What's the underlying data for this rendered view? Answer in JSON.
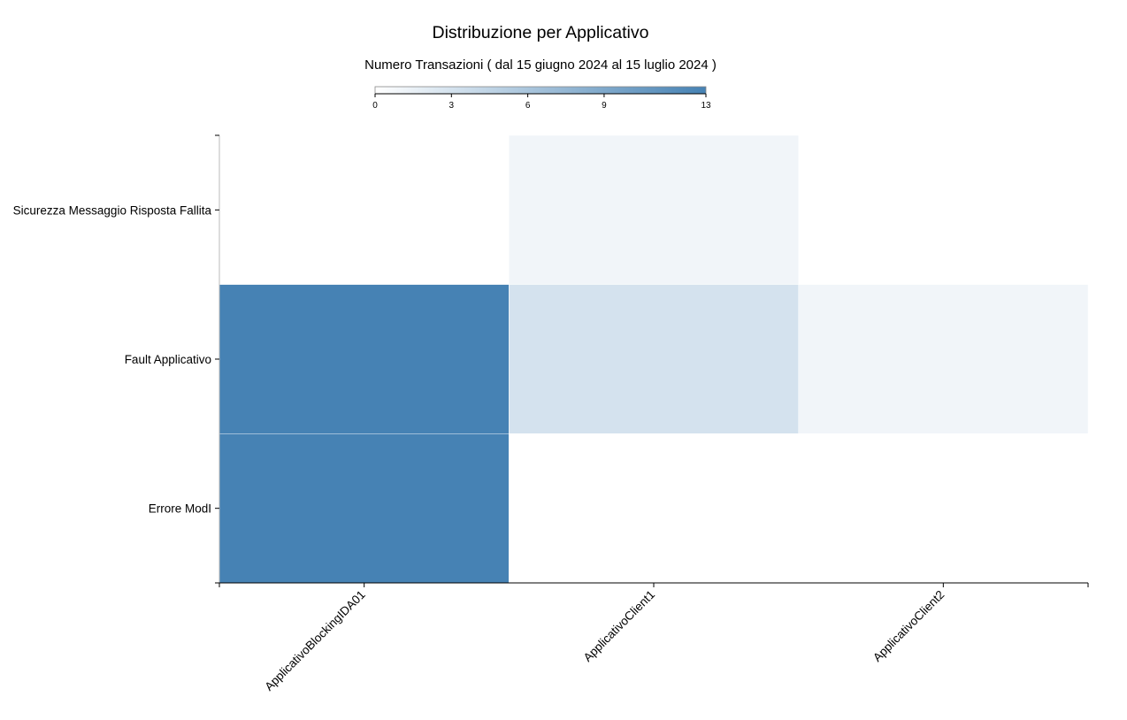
{
  "chart_data": {
    "type": "heatmap",
    "title": "Distribuzione per Applicativo",
    "subtitle": "Numero Transazioni ( dal 15 giugno 2024 al 15 luglio 2024 )",
    "x_categories": [
      "ApplicativoBlockingIDA01",
      "ApplicativoClient1",
      "ApplicativoClient2"
    ],
    "y_categories": [
      "Sicurezza Messaggio Risposta Fallita",
      "Fault Applicativo",
      "Errore ModI"
    ],
    "values": [
      [
        0,
        1,
        0
      ],
      [
        13,
        3,
        1
      ],
      [
        13,
        0,
        0
      ]
    ],
    "color_scale": {
      "min": 0,
      "max": 13,
      "ticks": [
        0,
        3,
        6,
        9,
        13
      ],
      "color_min": "#ffffff",
      "color_max": "#4682b4",
      "legend_position": "top"
    }
  }
}
